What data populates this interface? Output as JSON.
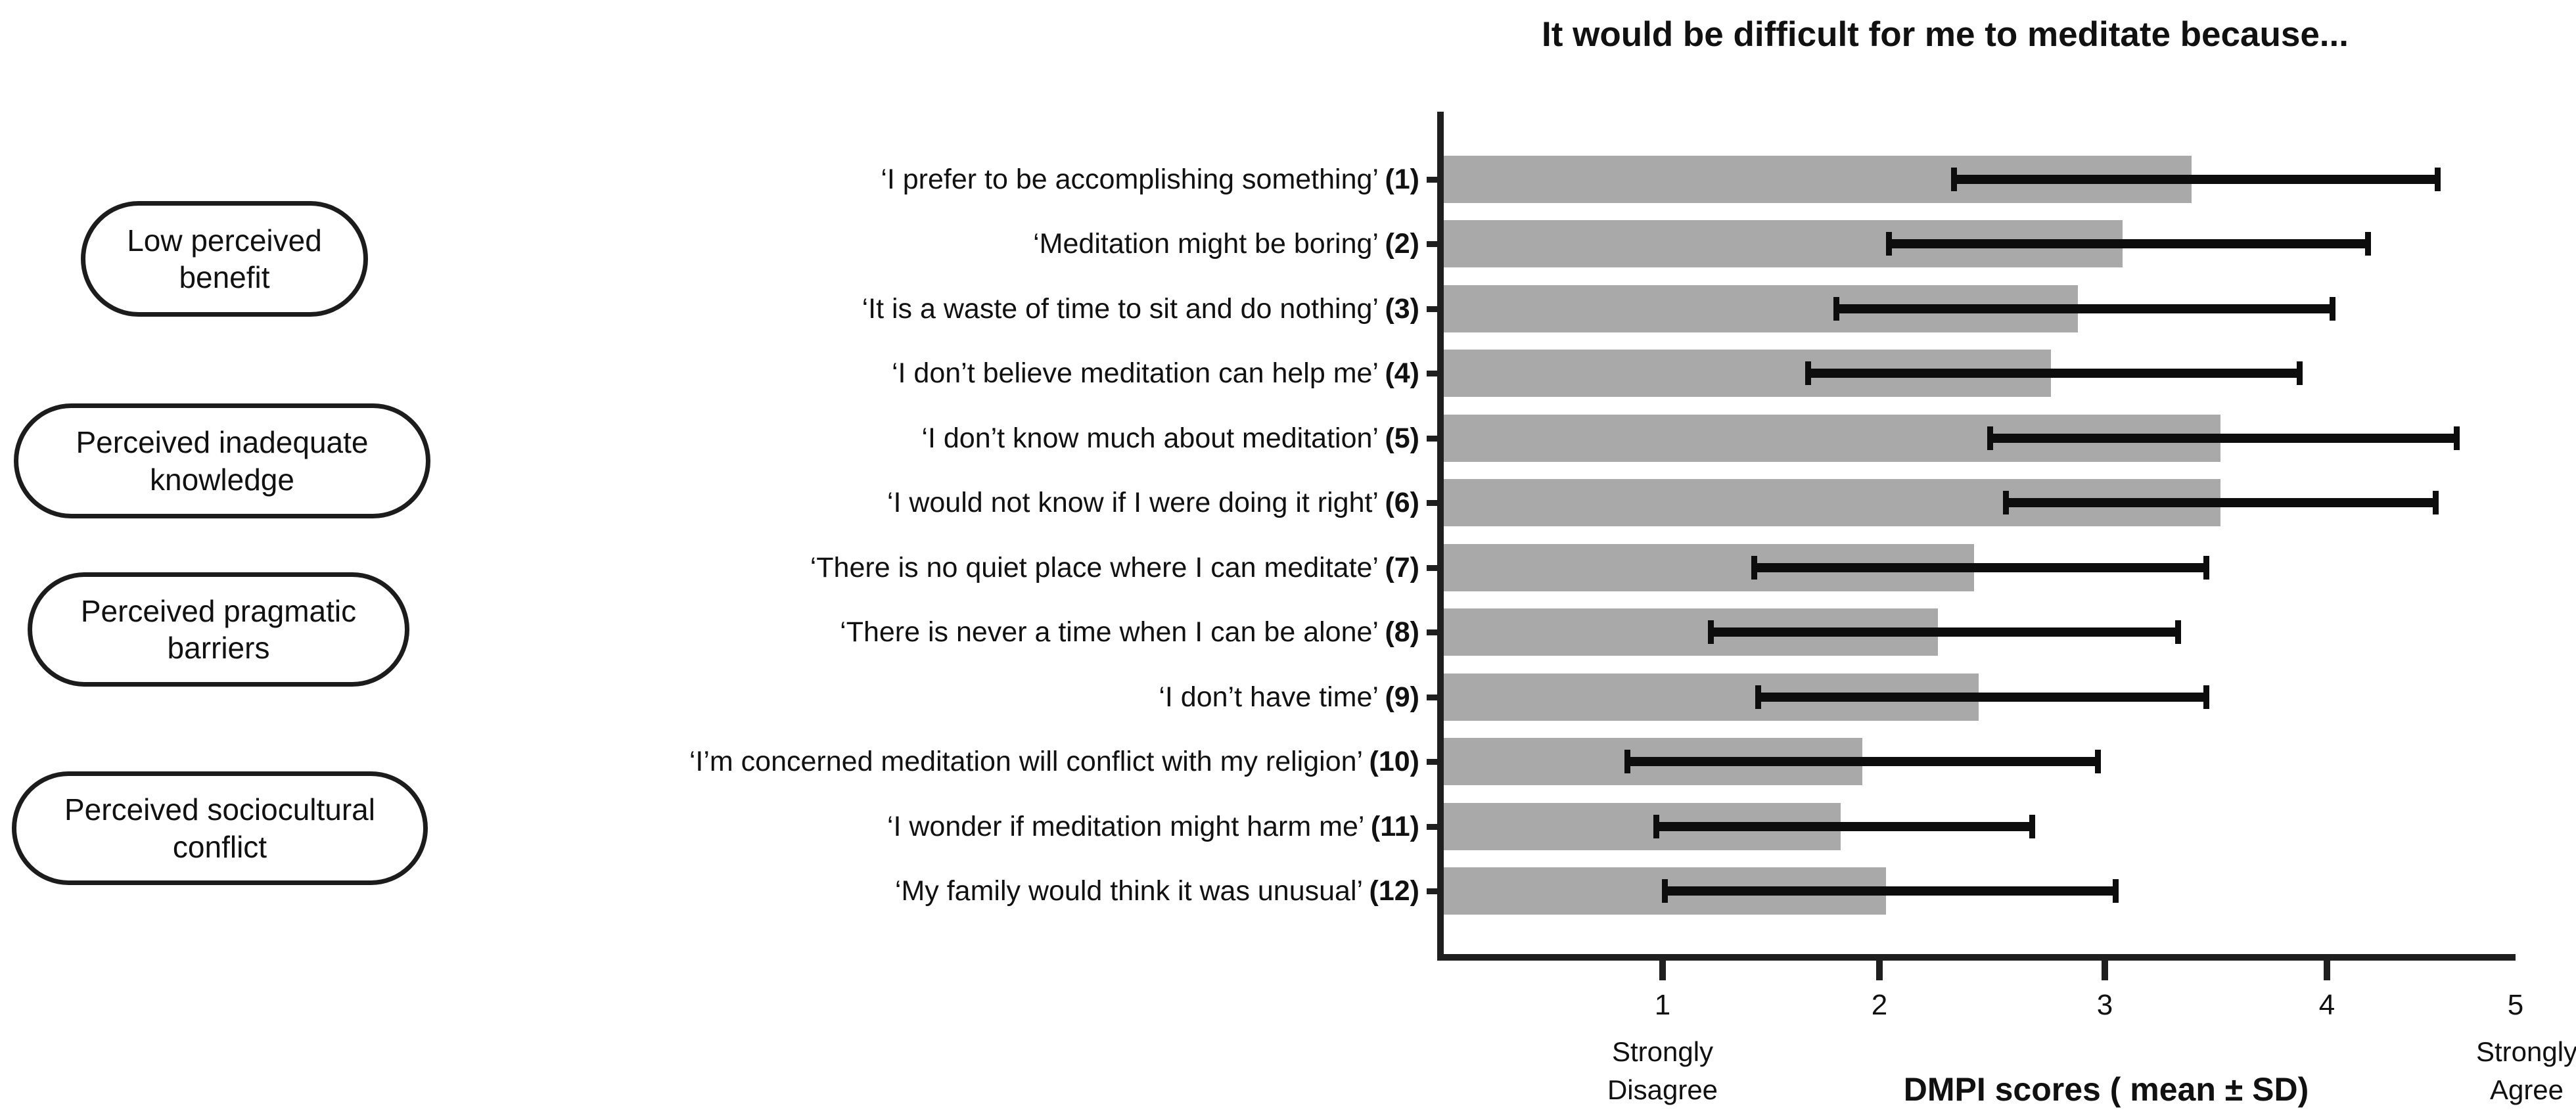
{
  "title": "It would be difficult for me to meditate because...",
  "colors": {
    "bar_fill": "#a9a9a9",
    "axis": "#1f1f1f",
    "error_bar": "#0d0d0d",
    "text": "#111111"
  },
  "categories": [
    {
      "line1": "Low perceived",
      "line2": "benefit"
    },
    {
      "line1": "Perceived inadequate",
      "line2": "knowledge"
    },
    {
      "line1": "Perceived pragmatic",
      "line2": "barriers"
    },
    {
      "line1": "Perceived sociocultural",
      "line2": "conflict"
    }
  ],
  "chart_data": {
    "type": "bar",
    "orientation": "horizontal",
    "title": "It would be difficult for me to meditate because...",
    "xlabel": "DMPI scores ( mean ± SD)",
    "xlim": [
      0,
      5
    ],
    "xticks": [
      "1",
      "2",
      "3",
      "4",
      "5"
    ],
    "grid": false,
    "legend": "none",
    "x_axis_annotations": {
      "low": {
        "line1": "Strongly",
        "line2": "Disagree"
      },
      "high": {
        "line1": "Strongly",
        "line2": "Agree"
      }
    },
    "items": [
      {
        "label": "‘I prefer to be accomplishing something’",
        "number": "(1)",
        "mean": 3.39,
        "err_low": 2.33,
        "err_high": 4.59
      },
      {
        "label": "‘Meditation might be boring’",
        "number": "(2)",
        "mean": 3.08,
        "err_low": 2.04,
        "err_high": 4.22
      },
      {
        "label": "‘It is a waste of time to sit and do nothing’",
        "number": "(3)",
        "mean": 2.88,
        "err_low": 1.8,
        "err_high": 4.03
      },
      {
        "label": "‘I don’t believe meditation can help me’",
        "number": "(4)",
        "mean": 2.76,
        "err_low": 1.67,
        "err_high": 3.88
      },
      {
        "label": "‘I don’t know much about meditation’",
        "number": "(5)",
        "mean": 3.52,
        "err_low": 2.49,
        "err_high": 4.69
      },
      {
        "label": "‘I would not know if I were doing it right’",
        "number": "(6)",
        "mean": 3.52,
        "err_low": 2.56,
        "err_high": 4.58
      },
      {
        "label": "‘There is no quiet place where I can meditate’",
        "number": "(7)",
        "mean": 2.42,
        "err_low": 1.42,
        "err_high": 3.46
      },
      {
        "label": "‘There is never a time when I can be alone’",
        "number": "(8)",
        "mean": 2.26,
        "err_low": 1.22,
        "err_high": 3.33
      },
      {
        "label": "‘I don’t have time’",
        "number": "(9)",
        "mean": 2.44,
        "err_low": 1.44,
        "err_high": 3.46
      },
      {
        "label": "‘I’m concerned meditation will conflict with my religion’",
        "number": "(10)",
        "mean": 1.92,
        "err_low": 0.84,
        "err_high": 2.97
      },
      {
        "label": "‘I wonder if meditation might harm me’",
        "number": "(11)",
        "mean": 1.82,
        "err_low": 0.97,
        "err_high": 2.68
      },
      {
        "label": "‘My family would think it was unusual’",
        "number": "(12)",
        "mean": 2.03,
        "err_low": 1.01,
        "err_high": 3.05
      }
    ]
  }
}
